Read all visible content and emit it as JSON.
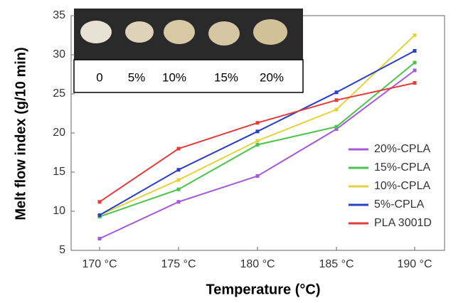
{
  "chart_data": {
    "type": "line",
    "xlabel": "Temperature (°C)",
    "ylabel": "Melt flow index (g/10 min)",
    "categories": [
      "170 °C",
      "175 °C",
      "180 °C",
      "185 °C",
      "190 °C"
    ],
    "series": [
      {
        "name": "20%-CPLA",
        "color": "#a45ad8",
        "values": [
          6.5,
          11.2,
          14.5,
          20.5,
          28
        ]
      },
      {
        "name": "15%-CPLA",
        "color": "#4cc44c",
        "values": [
          9.3,
          12.8,
          18.5,
          20.8,
          29
        ]
      },
      {
        "name": "10%-CPLA",
        "color": "#e4d23c",
        "values": [
          9.5,
          14,
          19,
          23,
          32.5
        ]
      },
      {
        "name": "5%-CPLA",
        "color": "#2a3ec6",
        "values": [
          9.5,
          15.3,
          20.2,
          25.2,
          30.5
        ]
      },
      {
        "name": "PLA 3001D",
        "color": "#e23c3c",
        "values": [
          11.2,
          18,
          21.3,
          24.2,
          26.4
        ]
      }
    ],
    "ylim": [
      5,
      35
    ],
    "yticks": [
      5,
      10,
      15,
      20,
      25,
      30,
      35
    ],
    "legend": "right",
    "inset_labels": [
      "0",
      "5%",
      "10%",
      "15%",
      "20%"
    ]
  }
}
